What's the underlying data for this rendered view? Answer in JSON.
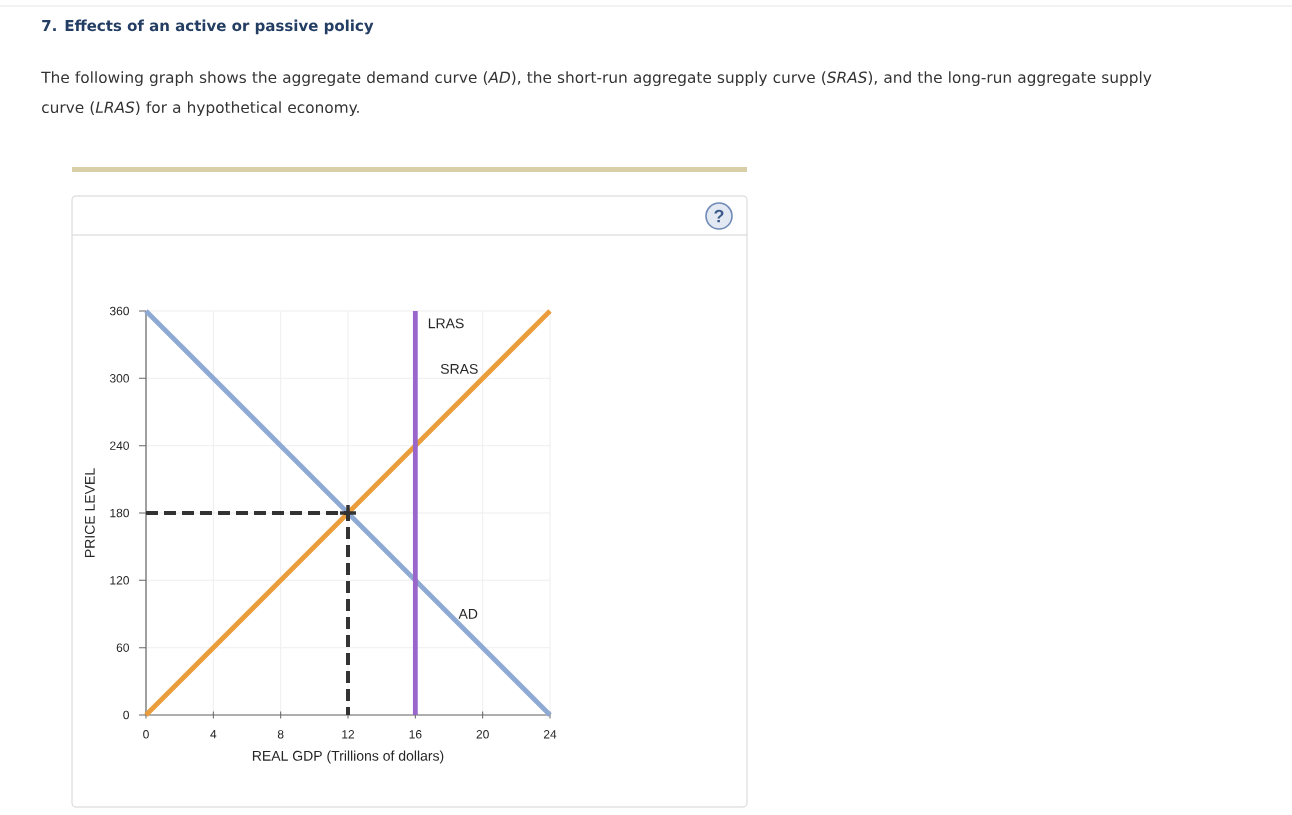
{
  "chart_data": {
    "type": "line",
    "title": "7. Effects of an active or passive policy",
    "subtitle": "The following graph shows the aggregate demand curve (*AD*), the short-run aggregate supply curve (*SRAS*), and the long-run aggregate supply curve (*LRAS*) for a hypothetical economy.",
    "xlabel": "REAL GDP (Trillions of dollars)",
    "ylabel": "PRICE LEVEL",
    "series": [
      {
        "name": "AD",
        "color": "#8eaad4",
        "x": [
          0,
          24
        ],
        "values": [
          360,
          0
        ]
      },
      {
        "name": "SRAS",
        "color": "#eb9c3b",
        "x": [
          0,
          24
        ],
        "values": [
          0,
          360
        ]
      },
      {
        "name": "LRAS",
        "color": "#9966cc",
        "x": [
          16,
          16
        ],
        "values": [
          0,
          360
        ]
      },
      {
        "type": "line",
        "line_style": "dashed",
        "color": "#333333",
        "x": [
          0,
          12,
          12
        ],
        "values": [
          180,
          180,
          0
        ]
      },
      {
        "type": "scatter",
        "marker": "cross",
        "color": "#333333",
        "x": [
          12
        ],
        "values": [
          180
        ]
      }
    ],
    "xlim": [
      0,
      24
    ],
    "xticks": [
      0,
      4,
      8,
      12,
      16,
      20,
      24
    ],
    "ylim": [
      0,
      360
    ],
    "yticks": [
      0,
      60,
      120,
      180,
      240,
      300,
      360
    ],
    "grid": true,
    "annotations": [
      "?"
    ]
  }
}
